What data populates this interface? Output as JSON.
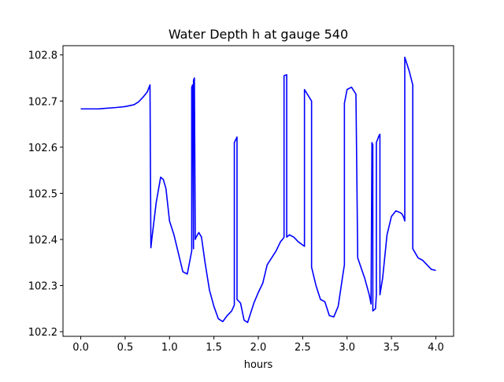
{
  "chart_data": {
    "type": "line",
    "title": "Water Depth h at gauge 540",
    "xlabel": "hours",
    "ylabel": "",
    "xlim": [
      -0.2,
      4.2
    ],
    "ylim": [
      102.19,
      102.82
    ],
    "xticks": [
      0.0,
      0.5,
      1.0,
      1.5,
      2.0,
      2.5,
      3.0,
      3.5,
      4.0
    ],
    "xtick_labels": [
      "0.0",
      "0.5",
      "1.0",
      "1.5",
      "2.0",
      "2.5",
      "3.0",
      "3.5",
      "4.0"
    ],
    "yticks": [
      102.2,
      102.3,
      102.4,
      102.5,
      102.6,
      102.7,
      102.8
    ],
    "ytick_labels": [
      "102.2",
      "102.3",
      "102.4",
      "102.5",
      "102.6",
      "102.7",
      "102.8"
    ],
    "grid": false,
    "legend": "none",
    "series": [
      {
        "color": "#0000ff",
        "x": [
          0.0,
          0.2,
          0.4,
          0.5,
          0.6,
          0.65,
          0.7,
          0.75,
          0.78,
          0.79,
          0.8,
          0.85,
          0.9,
          0.93,
          0.96,
          1.0,
          1.05,
          1.1,
          1.15,
          1.2,
          1.25,
          1.25,
          1.26,
          1.27,
          1.27,
          1.28,
          1.29,
          1.3,
          1.33,
          1.36,
          1.4,
          1.45,
          1.5,
          1.55,
          1.6,
          1.65,
          1.7,
          1.73,
          1.73,
          1.76,
          1.76,
          1.8,
          1.84,
          1.88,
          1.9,
          1.95,
          2.0,
          2.05,
          2.1,
          2.15,
          2.2,
          2.25,
          2.28,
          2.29,
          2.29,
          2.32,
          2.32,
          2.35,
          2.4,
          2.45,
          2.52,
          2.52,
          2.6,
          2.6,
          2.65,
          2.7,
          2.75,
          2.8,
          2.85,
          2.9,
          2.95,
          2.97,
          2.97,
          3.0,
          3.05,
          3.1,
          3.12,
          3.12,
          3.2,
          3.25,
          3.27,
          3.28,
          3.29,
          3.29,
          3.32,
          3.33,
          3.33,
          3.36,
          3.37,
          3.37,
          3.4,
          3.45,
          3.5,
          3.55,
          3.6,
          3.62,
          3.64,
          3.65,
          3.65,
          3.7,
          3.74,
          3.74,
          3.8,
          3.85,
          3.9,
          3.95,
          4.0
        ],
        "y": [
          102.683,
          102.683,
          102.686,
          102.688,
          102.692,
          102.698,
          102.708,
          102.72,
          102.735,
          102.382,
          102.4,
          102.48,
          102.535,
          102.53,
          102.51,
          102.44,
          102.41,
          102.37,
          102.33,
          102.325,
          102.375,
          102.73,
          102.735,
          102.38,
          102.745,
          102.75,
          102.4,
          102.405,
          102.415,
          102.405,
          102.35,
          102.29,
          102.255,
          102.228,
          102.222,
          102.235,
          102.245,
          102.258,
          102.61,
          102.622,
          102.27,
          102.262,
          102.225,
          102.22,
          102.232,
          102.262,
          102.285,
          102.305,
          102.345,
          102.36,
          102.375,
          102.395,
          102.402,
          102.405,
          102.755,
          102.757,
          102.405,
          102.41,
          102.405,
          102.395,
          102.385,
          102.725,
          102.7,
          102.34,
          102.3,
          102.27,
          102.265,
          102.235,
          102.232,
          102.255,
          102.32,
          102.345,
          102.695,
          102.725,
          102.73,
          102.715,
          102.36,
          102.36,
          102.315,
          102.28,
          102.26,
          102.61,
          102.605,
          102.245,
          102.25,
          102.28,
          102.61,
          102.625,
          102.628,
          102.28,
          102.315,
          102.41,
          102.45,
          102.462,
          102.458,
          102.455,
          102.447,
          102.44,
          102.795,
          102.765,
          102.735,
          102.38,
          102.36,
          102.355,
          102.345,
          102.335,
          102.333
        ]
      }
    ]
  }
}
